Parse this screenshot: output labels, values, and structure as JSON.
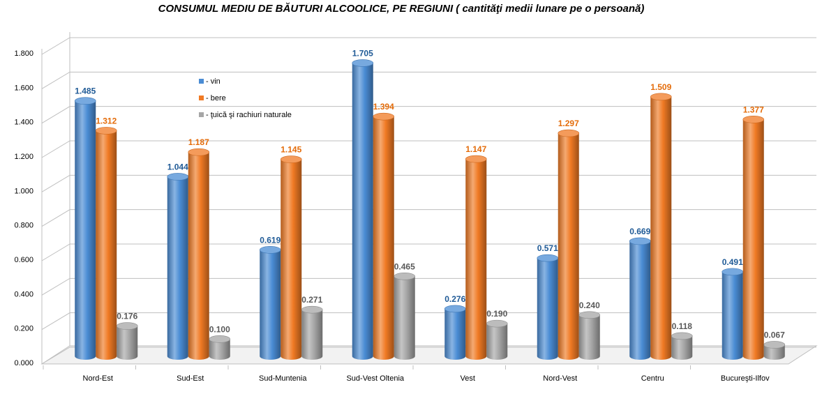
{
  "chart_data": {
    "type": "bar",
    "variant": "3d-cylinder",
    "title": "CONSUMUL MEDIU DE BĂUTURI ALCOOLICE, PE REGIUNI ( cantităţi medii lunare pe o persoană)",
    "xlabel": "",
    "ylabel": "",
    "ylim": [
      0,
      1.8
    ],
    "yticks": [
      0,
      0.2,
      0.4,
      0.6,
      0.8,
      1.0,
      1.2,
      1.4,
      1.6,
      1.8
    ],
    "ytick_labels": [
      "0.000",
      "0.200",
      "0.400",
      "0.600",
      "0.800",
      "1.000",
      "1.200",
      "1.400",
      "1.600",
      "1.800"
    ],
    "grid": true,
    "legend_position": "top-left inside plot",
    "categories": [
      "Nord-Est",
      "Sud-Est",
      "Sud-Muntenia",
      "Sud-Vest Oltenia",
      "Vest",
      "Nord-Vest",
      "Centru",
      "Bucureşti-Ilfov"
    ],
    "series": [
      {
        "name": "- vin",
        "color": "#4A8CD4",
        "label_color": "#1F5A96",
        "values": [
          1.485,
          1.044,
          0.619,
          1.705,
          0.276,
          0.571,
          0.669,
          0.491
        ],
        "labels": [
          "1.485",
          "1.044",
          "0.619",
          "1.705",
          "0.276",
          "0.571",
          "0.669",
          "0.491"
        ]
      },
      {
        "name": "- bere",
        "color": "#F07A24",
        "label_color": "#E46C0A",
        "values": [
          1.312,
          1.187,
          1.145,
          1.394,
          1.147,
          1.297,
          1.509,
          1.377
        ],
        "labels": [
          "1.312",
          "1.187",
          "1.145",
          "1.394",
          "1.147",
          "1.297",
          "1.509",
          "1.377"
        ]
      },
      {
        "name": "- ţuică şi rachiuri  naturale",
        "color": "#A6A6A6",
        "label_color": "#595959",
        "values": [
          0.176,
          0.1,
          0.271,
          0.465,
          0.19,
          0.24,
          0.118,
          0.067
        ],
        "labels": [
          "0.176",
          "0.100",
          "0.271",
          "0.465",
          "0.190",
          "0.240",
          "0.118",
          "0.067"
        ]
      }
    ]
  }
}
